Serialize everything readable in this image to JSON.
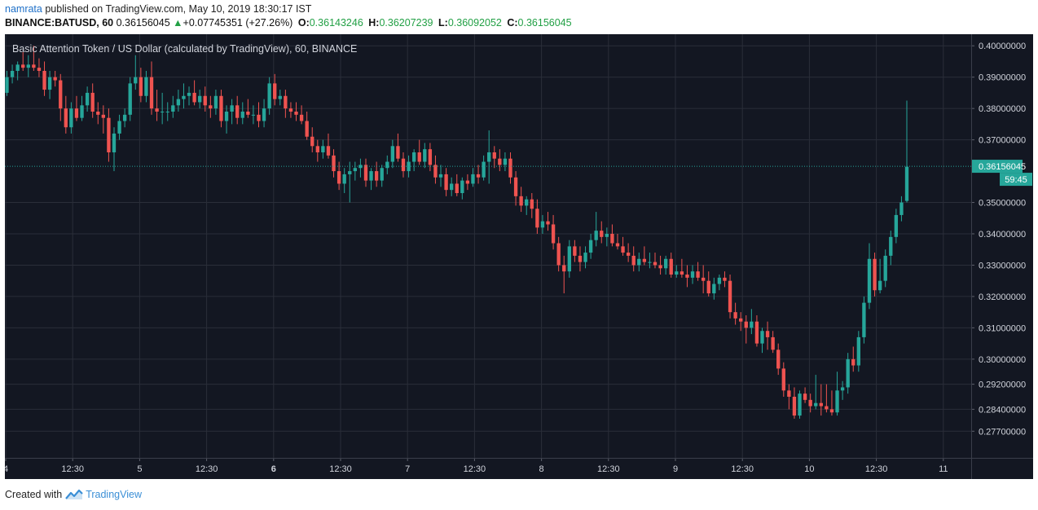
{
  "header": {
    "user": "namrata",
    "published_text": "published on TradingView.com, May 10, 2019 18:30:17 IST",
    "symbol": "BINANCE:BATUSD, 60",
    "last": "0.36156045",
    "change_arrow": "▲",
    "change": "+0.07745351 (+27.26%)",
    "o_label": "O:",
    "o_value": "0.36143246",
    "h_label": "H:",
    "h_value": "0.36207239",
    "l_label": "L:",
    "l_value": "0.36092052",
    "c_label": "C:",
    "c_value": "0.36156045"
  },
  "footer": {
    "created_with": "Created with",
    "brand": "TradingView"
  },
  "chart_data": {
    "type": "candlestick",
    "title": "Basic Attention Token / US Dollar (calculated by TradingView), 60, BINANCE",
    "theme": "dark",
    "colors": {
      "background": "#131722",
      "grid": "#2a2e39",
      "up": "#26a69a",
      "down": "#ef5350",
      "text": "#d1d4dc",
      "price_line": "#26a69a"
    },
    "y_axis": {
      "ticks": [
        0.4,
        0.39,
        0.38,
        0.37,
        0.35,
        0.34,
        0.33,
        0.32,
        0.31,
        0.3,
        0.292,
        0.284,
        0.277
      ],
      "tick_labels": [
        "0.40000000",
        "0.39000000",
        "0.38000000",
        "0.37000000",
        "0.35000000",
        "0.34000000",
        "0.33000000",
        "0.32000000",
        "0.31000000",
        "0.30000000",
        "0.29200000",
        "0.28400000",
        "0.27700000"
      ],
      "range": [
        0.2685,
        0.4037
      ]
    },
    "x_axis": {
      "tick_labels": [
        "4",
        "12:30",
        "5",
        "12:30",
        "6",
        "12:30",
        "7",
        "12:30",
        "8",
        "12:30",
        "9",
        "12:30",
        "10",
        "12:30",
        "11"
      ],
      "bold_labels": [
        "6"
      ]
    },
    "last_price": 0.36156045,
    "last_price_label": "0.36156045",
    "countdown": "59:45",
    "candles": [
      [
        0.385,
        0.392,
        0.384,
        0.39
      ],
      [
        0.39,
        0.394,
        0.388,
        0.392
      ],
      [
        0.392,
        0.395,
        0.389,
        0.394
      ],
      [
        0.394,
        0.398,
        0.392,
        0.393
      ],
      [
        0.393,
        0.397,
        0.39,
        0.394
      ],
      [
        0.394,
        0.4,
        0.392,
        0.393
      ],
      [
        0.393,
        0.396,
        0.39,
        0.392
      ],
      [
        0.392,
        0.395,
        0.384,
        0.386
      ],
      [
        0.386,
        0.392,
        0.383,
        0.39
      ],
      [
        0.39,
        0.392,
        0.387,
        0.389
      ],
      [
        0.389,
        0.391,
        0.376,
        0.38
      ],
      [
        0.38,
        0.384,
        0.372,
        0.374
      ],
      [
        0.374,
        0.382,
        0.372,
        0.38
      ],
      [
        0.38,
        0.384,
        0.376,
        0.377
      ],
      [
        0.377,
        0.384,
        0.376,
        0.381
      ],
      [
        0.381,
        0.387,
        0.379,
        0.385
      ],
      [
        0.385,
        0.388,
        0.377,
        0.379
      ],
      [
        0.379,
        0.382,
        0.375,
        0.378
      ],
      [
        0.378,
        0.381,
        0.372,
        0.377
      ],
      [
        0.377,
        0.38,
        0.363,
        0.366
      ],
      [
        0.366,
        0.374,
        0.36,
        0.372
      ],
      [
        0.372,
        0.378,
        0.37,
        0.376
      ],
      [
        0.376,
        0.38,
        0.374,
        0.378
      ],
      [
        0.378,
        0.39,
        0.376,
        0.388
      ],
      [
        0.388,
        0.397,
        0.386,
        0.39
      ],
      [
        0.39,
        0.393,
        0.382,
        0.384
      ],
      [
        0.384,
        0.392,
        0.382,
        0.39
      ],
      [
        0.39,
        0.395,
        0.378,
        0.38
      ],
      [
        0.38,
        0.386,
        0.376,
        0.379
      ],
      [
        0.379,
        0.385,
        0.375,
        0.379
      ],
      [
        0.379,
        0.382,
        0.376,
        0.379
      ],
      [
        0.379,
        0.384,
        0.377,
        0.381
      ],
      [
        0.381,
        0.386,
        0.379,
        0.383
      ],
      [
        0.383,
        0.388,
        0.38,
        0.384
      ],
      [
        0.384,
        0.387,
        0.381,
        0.385
      ],
      [
        0.385,
        0.389,
        0.381,
        0.382
      ],
      [
        0.382,
        0.386,
        0.38,
        0.384
      ],
      [
        0.384,
        0.387,
        0.379,
        0.381
      ],
      [
        0.381,
        0.384,
        0.377,
        0.38
      ],
      [
        0.38,
        0.386,
        0.378,
        0.384
      ],
      [
        0.384,
        0.386,
        0.374,
        0.376
      ],
      [
        0.376,
        0.381,
        0.372,
        0.379
      ],
      [
        0.379,
        0.383,
        0.375,
        0.381
      ],
      [
        0.381,
        0.384,
        0.375,
        0.377
      ],
      [
        0.377,
        0.382,
        0.375,
        0.379
      ],
      [
        0.379,
        0.383,
        0.377,
        0.378
      ],
      [
        0.378,
        0.381,
        0.375,
        0.378
      ],
      [
        0.378,
        0.382,
        0.374,
        0.376
      ],
      [
        0.376,
        0.383,
        0.374,
        0.38
      ],
      [
        0.38,
        0.39,
        0.378,
        0.388
      ],
      [
        0.388,
        0.391,
        0.381,
        0.383
      ],
      [
        0.383,
        0.386,
        0.381,
        0.384
      ],
      [
        0.384,
        0.386,
        0.377,
        0.38
      ],
      [
        0.38,
        0.382,
        0.377,
        0.379
      ],
      [
        0.379,
        0.382,
        0.376,
        0.378
      ],
      [
        0.378,
        0.381,
        0.375,
        0.376
      ],
      [
        0.376,
        0.379,
        0.37,
        0.371
      ],
      [
        0.371,
        0.374,
        0.366,
        0.368
      ],
      [
        0.368,
        0.37,
        0.363,
        0.366
      ],
      [
        0.366,
        0.37,
        0.364,
        0.368
      ],
      [
        0.368,
        0.372,
        0.364,
        0.365
      ],
      [
        0.365,
        0.367,
        0.358,
        0.36
      ],
      [
        0.36,
        0.363,
        0.354,
        0.356
      ],
      [
        0.356,
        0.361,
        0.353,
        0.359
      ],
      [
        0.359,
        0.363,
        0.35,
        0.36
      ],
      [
        0.36,
        0.363,
        0.357,
        0.361
      ],
      [
        0.361,
        0.364,
        0.358,
        0.362
      ],
      [
        0.362,
        0.364,
        0.355,
        0.357
      ],
      [
        0.357,
        0.361,
        0.354,
        0.36
      ],
      [
        0.36,
        0.363,
        0.355,
        0.357
      ],
      [
        0.357,
        0.362,
        0.355,
        0.361
      ],
      [
        0.361,
        0.365,
        0.359,
        0.363
      ],
      [
        0.363,
        0.37,
        0.361,
        0.368
      ],
      [
        0.368,
        0.372,
        0.363,
        0.364
      ],
      [
        0.364,
        0.366,
        0.358,
        0.36
      ],
      [
        0.36,
        0.365,
        0.358,
        0.363
      ],
      [
        0.363,
        0.367,
        0.36,
        0.366
      ],
      [
        0.366,
        0.37,
        0.362,
        0.363
      ],
      [
        0.363,
        0.369,
        0.361,
        0.367
      ],
      [
        0.367,
        0.369,
        0.36,
        0.362
      ],
      [
        0.362,
        0.365,
        0.356,
        0.358
      ],
      [
        0.358,
        0.362,
        0.355,
        0.359
      ],
      [
        0.359,
        0.361,
        0.352,
        0.354
      ],
      [
        0.354,
        0.358,
        0.352,
        0.356
      ],
      [
        0.356,
        0.359,
        0.352,
        0.353
      ],
      [
        0.353,
        0.358,
        0.351,
        0.357
      ],
      [
        0.357,
        0.359,
        0.354,
        0.356
      ],
      [
        0.356,
        0.361,
        0.355,
        0.359
      ],
      [
        0.359,
        0.362,
        0.356,
        0.358
      ],
      [
        0.358,
        0.365,
        0.357,
        0.363
      ],
      [
        0.363,
        0.373,
        0.356,
        0.366
      ],
      [
        0.366,
        0.368,
        0.361,
        0.364
      ],
      [
        0.364,
        0.367,
        0.36,
        0.362
      ],
      [
        0.362,
        0.366,
        0.36,
        0.364
      ],
      [
        0.364,
        0.366,
        0.356,
        0.358
      ],
      [
        0.358,
        0.36,
        0.349,
        0.352
      ],
      [
        0.352,
        0.355,
        0.347,
        0.349
      ],
      [
        0.349,
        0.352,
        0.346,
        0.351
      ],
      [
        0.351,
        0.353,
        0.345,
        0.348
      ],
      [
        0.348,
        0.351,
        0.34,
        0.342
      ],
      [
        0.342,
        0.346,
        0.34,
        0.344
      ],
      [
        0.344,
        0.347,
        0.341,
        0.343
      ],
      [
        0.343,
        0.346,
        0.335,
        0.337
      ],
      [
        0.337,
        0.339,
        0.328,
        0.33
      ],
      [
        0.33,
        0.333,
        0.321,
        0.328
      ],
      [
        0.328,
        0.338,
        0.326,
        0.336
      ],
      [
        0.336,
        0.338,
        0.331,
        0.333
      ],
      [
        0.333,
        0.336,
        0.328,
        0.331
      ],
      [
        0.331,
        0.336,
        0.329,
        0.334
      ],
      [
        0.334,
        0.34,
        0.332,
        0.338
      ],
      [
        0.338,
        0.347,
        0.336,
        0.341
      ],
      [
        0.341,
        0.344,
        0.337,
        0.339
      ],
      [
        0.339,
        0.342,
        0.336,
        0.34
      ],
      [
        0.34,
        0.343,
        0.336,
        0.337
      ],
      [
        0.337,
        0.34,
        0.335,
        0.336
      ],
      [
        0.336,
        0.339,
        0.333,
        0.334
      ],
      [
        0.334,
        0.337,
        0.331,
        0.333
      ],
      [
        0.333,
        0.336,
        0.328,
        0.33
      ],
      [
        0.33,
        0.334,
        0.328,
        0.332
      ],
      [
        0.332,
        0.336,
        0.33,
        0.331
      ],
      [
        0.331,
        0.334,
        0.329,
        0.331
      ],
      [
        0.331,
        0.334,
        0.329,
        0.33
      ],
      [
        0.33,
        0.333,
        0.327,
        0.329
      ],
      [
        0.329,
        0.333,
        0.327,
        0.332
      ],
      [
        0.332,
        0.334,
        0.326,
        0.327
      ],
      [
        0.327,
        0.33,
        0.326,
        0.328
      ],
      [
        0.328,
        0.332,
        0.326,
        0.327
      ],
      [
        0.327,
        0.33,
        0.323,
        0.326
      ],
      [
        0.326,
        0.33,
        0.324,
        0.328
      ],
      [
        0.328,
        0.331,
        0.325,
        0.326
      ],
      [
        0.326,
        0.33,
        0.321,
        0.325
      ],
      [
        0.325,
        0.328,
        0.32,
        0.321
      ],
      [
        0.321,
        0.326,
        0.319,
        0.324
      ],
      [
        0.324,
        0.327,
        0.322,
        0.326
      ],
      [
        0.326,
        0.328,
        0.323,
        0.325
      ],
      [
        0.325,
        0.327,
        0.313,
        0.315
      ],
      [
        0.315,
        0.318,
        0.311,
        0.313
      ],
      [
        0.313,
        0.315,
        0.309,
        0.312
      ],
      [
        0.312,
        0.314,
        0.305,
        0.31
      ],
      [
        0.31,
        0.316,
        0.308,
        0.312
      ],
      [
        0.312,
        0.314,
        0.304,
        0.305
      ],
      [
        0.305,
        0.31,
        0.302,
        0.309
      ],
      [
        0.309,
        0.312,
        0.303,
        0.307
      ],
      [
        0.307,
        0.309,
        0.302,
        0.303
      ],
      [
        0.303,
        0.305,
        0.295,
        0.297
      ],
      [
        0.297,
        0.299,
        0.288,
        0.29
      ],
      [
        0.29,
        0.292,
        0.284,
        0.288
      ],
      [
        0.288,
        0.291,
        0.281,
        0.282
      ],
      [
        0.282,
        0.29,
        0.281,
        0.289
      ],
      [
        0.289,
        0.291,
        0.286,
        0.287
      ],
      [
        0.287,
        0.289,
        0.283,
        0.285
      ],
      [
        0.285,
        0.295,
        0.284,
        0.286
      ],
      [
        0.286,
        0.292,
        0.282,
        0.285
      ],
      [
        0.285,
        0.292,
        0.283,
        0.284
      ],
      [
        0.284,
        0.29,
        0.282,
        0.283
      ],
      [
        0.283,
        0.296,
        0.282,
        0.29
      ],
      [
        0.29,
        0.293,
        0.287,
        0.291
      ],
      [
        0.291,
        0.302,
        0.289,
        0.3
      ],
      [
        0.3,
        0.304,
        0.296,
        0.298
      ],
      [
        0.298,
        0.309,
        0.296,
        0.307
      ],
      [
        0.307,
        0.32,
        0.305,
        0.318
      ],
      [
        0.318,
        0.337,
        0.316,
        0.332
      ],
      [
        0.332,
        0.334,
        0.32,
        0.322
      ],
      [
        0.322,
        0.332,
        0.321,
        0.325
      ],
      [
        0.325,
        0.335,
        0.323,
        0.333
      ],
      [
        0.333,
        0.341,
        0.33,
        0.339
      ],
      [
        0.339,
        0.348,
        0.337,
        0.346
      ],
      [
        0.346,
        0.352,
        0.344,
        0.35
      ],
      [
        0.3505,
        0.3825,
        0.35,
        0.3614
      ]
    ]
  }
}
